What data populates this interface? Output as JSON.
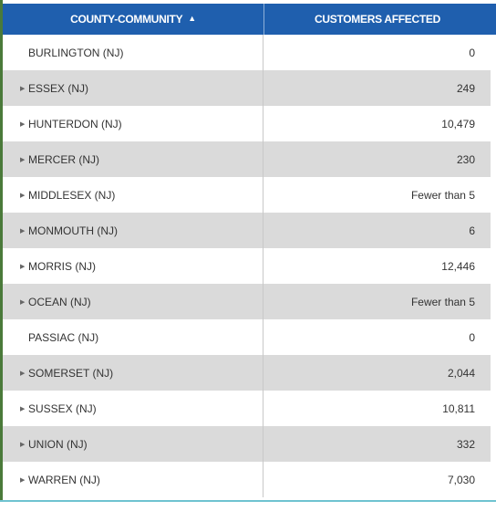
{
  "table": {
    "headers": {
      "county": "COUNTY-COMMUNITY",
      "county_sort_icon": "sort-ascending-icon",
      "customers": "CUSTOMERS AFFECTED"
    },
    "rows": [
      {
        "name": "BURLINGTON (NJ)",
        "value": "0",
        "expandable": false
      },
      {
        "name": "ESSEX (NJ)",
        "value": "249",
        "expandable": true
      },
      {
        "name": "HUNTERDON (NJ)",
        "value": "10,479",
        "expandable": true
      },
      {
        "name": "MERCER (NJ)",
        "value": "230",
        "expandable": true
      },
      {
        "name": "MIDDLESEX (NJ)",
        "value": "Fewer than 5",
        "expandable": true
      },
      {
        "name": "MONMOUTH (NJ)",
        "value": "6",
        "expandable": true
      },
      {
        "name": "MORRIS (NJ)",
        "value": "12,446",
        "expandable": true
      },
      {
        "name": "OCEAN (NJ)",
        "value": "Fewer than 5",
        "expandable": true
      },
      {
        "name": "PASSIAC (NJ)",
        "value": "0",
        "expandable": false
      },
      {
        "name": "SOMERSET (NJ)",
        "value": "2,044",
        "expandable": true
      },
      {
        "name": "SUSSEX (NJ)",
        "value": "10,811",
        "expandable": true
      },
      {
        "name": "UNION (NJ)",
        "value": "332",
        "expandable": true
      },
      {
        "name": "WARREN (NJ)",
        "value": "7,030",
        "expandable": true
      }
    ]
  },
  "colors": {
    "header_bg": "#1f5fae",
    "row_alt_bg": "#dadada",
    "text": "#333333"
  }
}
